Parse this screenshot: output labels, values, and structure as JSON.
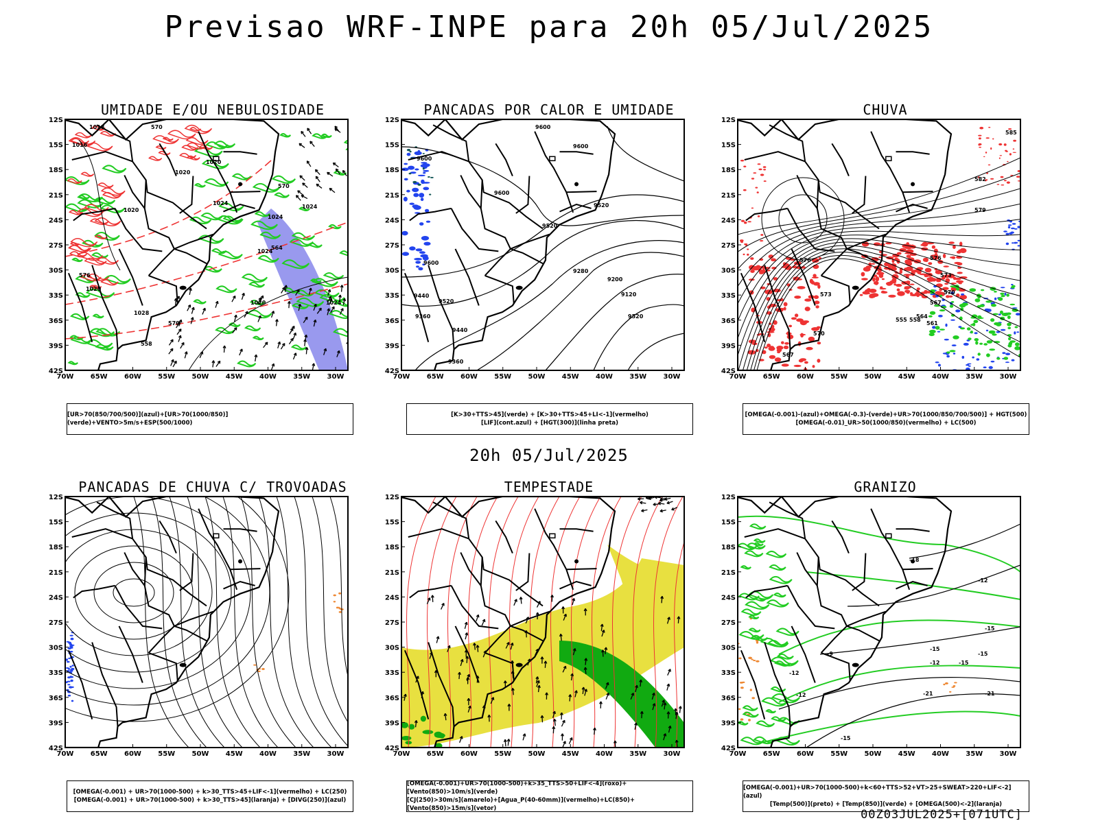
{
  "title": "Previsao WRF-INPE  para 20h 05/Jul/2025",
  "subtitle_time": "20h 05/Jul/2025",
  "footer_code": "00Z03JUL2025+[071UTC]",
  "axes": {
    "lat_labels": [
      "12S",
      "15S",
      "18S",
      "21S",
      "24S",
      "27S",
      "30S",
      "33S",
      "36S",
      "39S",
      "42S"
    ],
    "lon_labels": [
      "70W",
      "65W",
      "60W",
      "55W",
      "50W",
      "45W",
      "40W",
      "35W",
      "30W"
    ]
  },
  "panels": [
    {
      "id": "umidade",
      "title": "UMIDADE E/OU NEBULOSIDADE",
      "legend": [
        "[UR>70(850/700/500)](azul)+[UR>70(1000/850)](verde)+VENTO>5m/s+ESP(500/1000)"
      ],
      "contour_labels": [
        "1018",
        "1016",
        "570",
        "1020",
        "1020",
        "1024",
        "1020",
        "564",
        "1024",
        "570",
        "1024",
        "1020",
        "1024",
        "576",
        "1020",
        "1024",
        "1028",
        "558",
        "570"
      ]
    },
    {
      "id": "pancadas-calor",
      "title": "PANCADAS POR CALOR E UMIDADE",
      "legend": [
        "[K>30+TTS>45](verde) + [K>30+TTS>45+LI<-1](vermelho)",
        "[LIF](cont.azul) + [HGT(300)](linha preta)"
      ],
      "contour_labels": [
        "9600",
        "9600",
        "9600",
        "9600",
        "9520",
        "9520",
        "9600",
        "9520",
        "9440",
        "9360",
        "9280",
        "9200",
        "9120",
        "9520",
        "9440",
        "9360"
      ]
    },
    {
      "id": "chuva",
      "title": "CHUVA",
      "legend": [
        "[OMEGA(-0.001)-(azul)+OMEGA(-0.3)-(verde)+UR>70(1000/850/700/500)] + HGT(500)",
        "[OMEGA(-0.01)_UR>50(1000/850)(vermelho) + LC(500)"
      ],
      "contour_labels": [
        "585",
        "582",
        "579",
        "576",
        "573",
        "570",
        "567",
        "564",
        "561",
        "558",
        "555",
        "576",
        "573",
        "570",
        "567"
      ]
    },
    {
      "id": "pancadas-trovoadas",
      "title": "PANCADAS DE CHUVA C/ TROVOADAS",
      "legend": [
        "[OMEGA(-0.001) + UR>70(1000-500) + k>30_TTS>45+LIF<-1](vermelho) + LC(250)",
        "[OMEGA(-0.001) + UR>70(1000-500) + k>30_TTS>45](laranja) + [DIVG(250)](azul)"
      ],
      "contour_labels": []
    },
    {
      "id": "tempestade",
      "title": "TEMPESTADE",
      "legend": [
        "[OMEGA(-0.001)+UR>70(1000-500)+k>35_TTS>50+LIF<-4](roxo)+[Vento(850)>10m/s](verde)",
        "[CJ(250)>30m/s](amarelo)+[Agua_P(40-60mm)](vermelho)+LC(850)+[Vento(850)>15m/s](vetor)"
      ],
      "contour_labels": []
    },
    {
      "id": "granizo",
      "title": "GRANIZO",
      "legend": [
        "[OMEGA(-0.001)+UR>70(1000-500)+k<60+TTS>52+VT>25+SWEAT>220+LIF<-2](azul)",
        "[Temp(500)](preto) + [Temp(850)](verde) + [OMEGA(500)<-2](laranja)"
      ],
      "contour_labels": [
        "-12",
        "-15",
        "-15",
        "-12",
        "-12",
        "-9",
        "-15",
        "-15",
        "-12",
        "-21",
        "-21",
        "-18",
        "-15"
      ]
    }
  ],
  "colors": {
    "green": "#22cc22",
    "red": "#ee3333",
    "blue": "#2244ee",
    "lavender": "#9999ee",
    "yellow": "#e8e040",
    "orange": "#ee8833",
    "dark_green": "#11aa11"
  }
}
